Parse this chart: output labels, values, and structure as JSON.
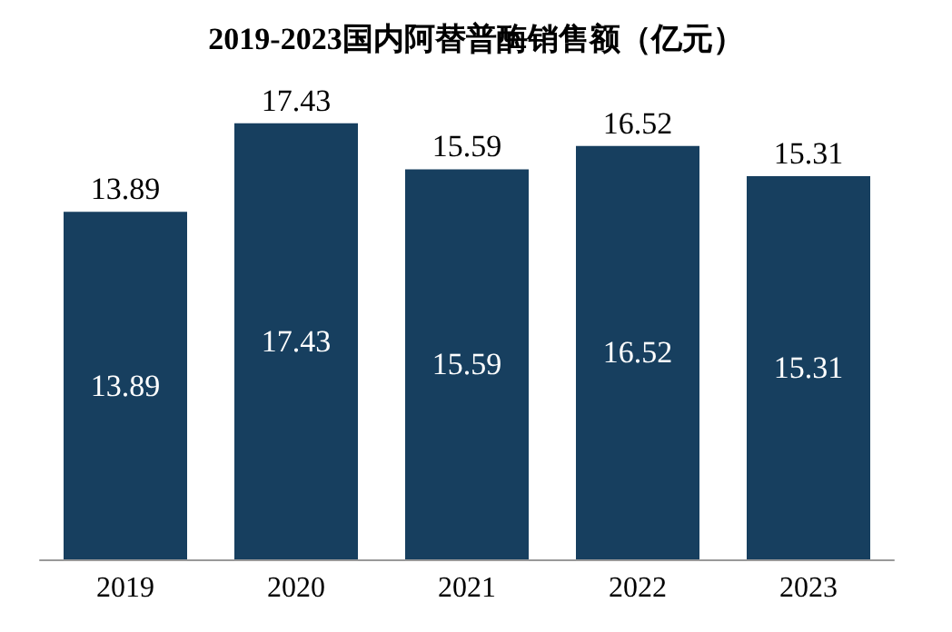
{
  "chart_data": {
    "type": "bar",
    "title": "2019-2023国内阿替普酶销售额（亿元）",
    "categories": [
      "2019",
      "2020",
      "2021",
      "2022",
      "2023"
    ],
    "values": [
      13.89,
      17.43,
      15.59,
      16.52,
      15.31
    ],
    "color": "#173f5f",
    "data_labels": true,
    "annotations": [
      "13.89",
      "17.43",
      "15.59",
      "16.52",
      "15.31"
    ],
    "grid": false
  }
}
